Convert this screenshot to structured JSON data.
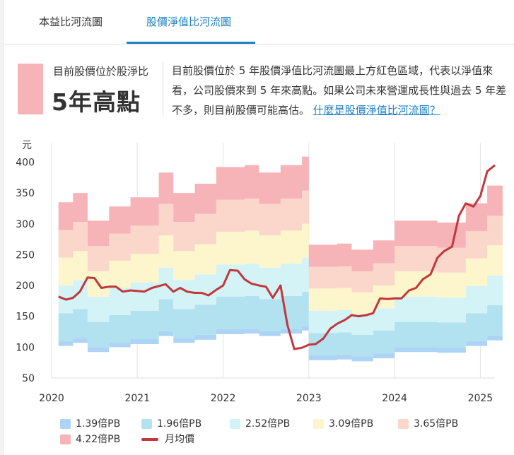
{
  "tabs": [
    "本益比河流圖",
    "股價淨值比河流圖"
  ],
  "active_tab": 1,
  "status": {
    "label": "目前股價位於股淨比",
    "value": "5年高點",
    "badge_color": "#f6b4b8"
  },
  "description": {
    "text": "目前股價位於 5 年股價淨值比河流圖最上方紅色區域，代表以淨值來看，公司股價來到 5 年來高點。如果公司未來營運成長性與過去 5 年差不多，則目前股價可能高估。",
    "link": "什麼是股價淨值比河流圖？"
  },
  "chart_data": {
    "type": "area",
    "y_unit": "元",
    "ylim": [
      50,
      420
    ],
    "yticks": [
      50,
      100,
      150,
      200,
      250,
      300,
      350,
      400
    ],
    "xlim": [
      2020,
      2025.17
    ],
    "xticks": [
      2020,
      2021,
      2022,
      2023,
      2024,
      2025
    ],
    "grid": "vertical",
    "legend_position": "bottom",
    "x": [
      2020.08,
      2020.17,
      2020.25,
      2020.33,
      2020.42,
      2020.5,
      2020.58,
      2020.67,
      2020.75,
      2020.83,
      2020.92,
      2021.0,
      2021.08,
      2021.17,
      2021.25,
      2021.33,
      2021.42,
      2021.5,
      2021.58,
      2021.67,
      2021.75,
      2021.83,
      2021.92,
      2022.0,
      2022.08,
      2022.17,
      2022.25,
      2022.33,
      2022.42,
      2022.5,
      2022.58,
      2022.67,
      2022.75,
      2022.83,
      2022.92,
      2023.0,
      2023.08,
      2023.17,
      2023.25,
      2023.33,
      2023.42,
      2023.5,
      2023.58,
      2023.67,
      2023.75,
      2023.83,
      2023.92,
      2024.0,
      2024.08,
      2024.17,
      2024.25,
      2024.33,
      2024.42,
      2024.5,
      2024.58,
      2024.67,
      2024.75,
      2024.83,
      2024.92,
      2025.0,
      2025.08,
      2025.17
    ],
    "bands": [
      {
        "name": "1.39倍PB",
        "color": "#aed4f5",
        "values": [
          110,
          110,
          115,
          115,
          100,
          100,
          100,
          108,
          108,
          108,
          113,
          113,
          113,
          113,
          126,
          126,
          115,
          115,
          115,
          120,
          120,
          120,
          129,
          129,
          129,
          129,
          130,
          130,
          126,
          126,
          126,
          130,
          130,
          130,
          135,
          87,
          87,
          87,
          87,
          88,
          88,
          85,
          85,
          85,
          90,
          90,
          90,
          100,
          100,
          100,
          100,
          100,
          100,
          99,
          99,
          99,
          99,
          110,
          110,
          110,
          119,
          119
        ]
      },
      {
        "name": "1.96倍PB",
        "color": "#b2e1f0",
        "values": [
          155,
          155,
          162,
          162,
          141,
          141,
          141,
          152,
          152,
          152,
          159,
          159,
          159,
          159,
          178,
          178,
          162,
          162,
          162,
          169,
          169,
          169,
          182,
          182,
          182,
          182,
          183,
          183,
          178,
          178,
          178,
          183,
          183,
          183,
          190,
          123,
          123,
          123,
          123,
          124,
          124,
          120,
          120,
          120,
          127,
          127,
          127,
          141,
          141,
          141,
          141,
          141,
          141,
          140,
          140,
          140,
          140,
          155,
          155,
          155,
          168,
          168
        ]
      },
      {
        "name": "2.52倍PB",
        "color": "#d3f3f6",
        "values": [
          200,
          200,
          209,
          209,
          182,
          182,
          182,
          196,
          196,
          196,
          205,
          205,
          205,
          205,
          229,
          229,
          209,
          209,
          209,
          218,
          218,
          218,
          234,
          234,
          234,
          234,
          235,
          235,
          229,
          229,
          229,
          235,
          235,
          235,
          245,
          159,
          159,
          159,
          159,
          160,
          160,
          154,
          154,
          154,
          163,
          163,
          163,
          182,
          182,
          182,
          182,
          182,
          182,
          180,
          180,
          180,
          180,
          199,
          199,
          199,
          216,
          216
        ]
      },
      {
        "name": "3.09倍PB",
        "color": "#fdf5cc",
        "values": [
          245,
          245,
          256,
          256,
          223,
          223,
          223,
          240,
          240,
          240,
          251,
          251,
          251,
          251,
          281,
          281,
          256,
          256,
          256,
          267,
          267,
          267,
          287,
          287,
          287,
          287,
          289,
          289,
          281,
          281,
          281,
          289,
          289,
          289,
          300,
          195,
          195,
          195,
          195,
          196,
          196,
          189,
          189,
          189,
          200,
          200,
          200,
          223,
          223,
          223,
          223,
          223,
          223,
          221,
          221,
          221,
          221,
          244,
          244,
          244,
          265,
          265
        ]
      },
      {
        "name": "3.65倍PB",
        "color": "#fbd6cb",
        "values": [
          290,
          290,
          303,
          303,
          264,
          264,
          264,
          284,
          284,
          284,
          297,
          297,
          297,
          297,
          332,
          332,
          303,
          303,
          303,
          316,
          316,
          316,
          339,
          339,
          339,
          339,
          341,
          341,
          332,
          332,
          332,
          341,
          341,
          341,
          354,
          230,
          230,
          230,
          230,
          231,
          231,
          223,
          223,
          223,
          236,
          236,
          236,
          264,
          264,
          264,
          264,
          264,
          264,
          261,
          261,
          261,
          261,
          288,
          288,
          288,
          313,
          313
        ]
      },
      {
        "name": "4.22倍PB",
        "color": "#f6b4b8",
        "values": [
          335,
          335,
          350,
          350,
          305,
          305,
          305,
          328,
          328,
          328,
          343,
          343,
          343,
          343,
          383,
          383,
          350,
          350,
          350,
          365,
          365,
          365,
          392,
          392,
          392,
          392,
          395,
          395,
          383,
          383,
          383,
          395,
          395,
          395,
          409,
          266,
          266,
          266,
          266,
          268,
          268,
          258,
          258,
          258,
          273,
          273,
          273,
          305,
          305,
          305,
          305,
          305,
          305,
          302,
          302,
          302,
          302,
          333,
          333,
          333,
          362,
          362
        ]
      }
    ],
    "series": [
      {
        "name": "月均價",
        "color": "#c0383c",
        "values": [
          182,
          177,
          180,
          190,
          213,
          212,
          196,
          198,
          198,
          190,
          192,
          191,
          190,
          196,
          199,
          202,
          190,
          196,
          190,
          188,
          188,
          184,
          193,
          200,
          225,
          224,
          210,
          203,
          200,
          198,
          180,
          200,
          136,
          97,
          99,
          104,
          105,
          114,
          130,
          138,
          144,
          152,
          150,
          152,
          155,
          179,
          178,
          179,
          179,
          192,
          196,
          210,
          218,
          245,
          256,
          263,
          313,
          333,
          328,
          345,
          385,
          395
        ]
      }
    ]
  },
  "legend_items": [
    {
      "label": "1.39倍PB",
      "color": "#aed4f5",
      "kind": "swatch"
    },
    {
      "label": "1.96倍PB",
      "color": "#b2e1f0",
      "kind": "swatch"
    },
    {
      "label": "2.52倍PB",
      "color": "#d3f3f6",
      "kind": "swatch"
    },
    {
      "label": "3.09倍PB",
      "color": "#fdf5cc",
      "kind": "swatch"
    },
    {
      "label": "3.65倍PB",
      "color": "#fbd6cb",
      "kind": "swatch"
    },
    {
      "label": "4.22倍PB",
      "color": "#f6b4b8",
      "kind": "swatch"
    },
    {
      "label": "月均價",
      "color": "#c0383c",
      "kind": "line"
    }
  ]
}
